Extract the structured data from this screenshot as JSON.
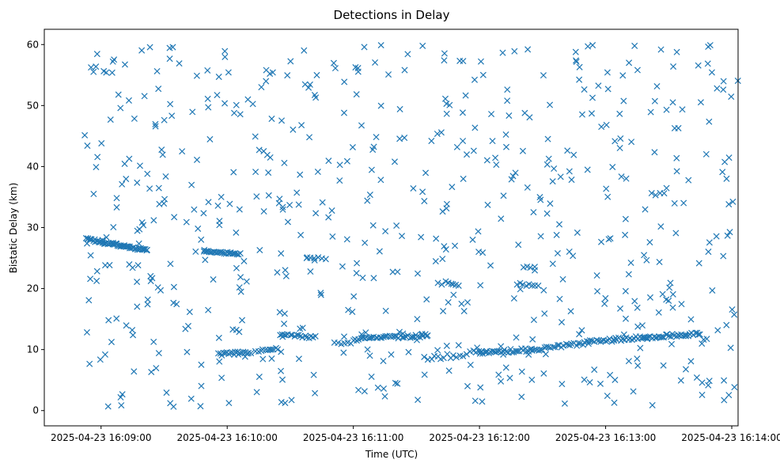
{
  "chart_data": {
    "type": "scatter",
    "title": "Detections in Delay",
    "xlabel": "Time (UTC)",
    "ylabel": "Bistatic Delay (km)",
    "marker": "x",
    "color": "#1f77b4",
    "x_unit": "seconds since 2025-04-23 16:09:00",
    "xlim": [
      -27,
      303
    ],
    "ylim": [
      -2.5,
      62.5
    ],
    "x_ticks": [
      {
        "value": 0,
        "label": "2025-04-23 16:09:00"
      },
      {
        "value": 60,
        "label": "2025-04-23 16:10:00"
      },
      {
        "value": 120,
        "label": "2025-04-23 16:11:00"
      },
      {
        "value": 180,
        "label": "2025-04-23 16:12:00"
      },
      {
        "value": 240,
        "label": "2025-04-23 16:13:00"
      },
      {
        "value": 300,
        "label": "2025-04-23 16:14:00"
      }
    ],
    "y_ticks": [
      {
        "value": 0,
        "label": "0"
      },
      {
        "value": 10,
        "label": "10"
      },
      {
        "value": 20,
        "label": "20"
      },
      {
        "value": 30,
        "label": "30"
      },
      {
        "value": 40,
        "label": "40"
      },
      {
        "value": 50,
        "label": "50"
      },
      {
        "value": 60,
        "label": "60"
      }
    ],
    "tracks": [
      {
        "x_start": -7,
        "x_end": 22,
        "y_start": 28.1,
        "y_end": 26.2,
        "count": 55,
        "jitter": 0.2
      },
      {
        "x_start": 49,
        "x_end": 66,
        "y_start": 26.1,
        "y_end": 25.7,
        "count": 26,
        "jitter": 0.15
      },
      {
        "x_start": 98,
        "x_end": 107,
        "y_start": 25.2,
        "y_end": 24.9,
        "count": 6,
        "jitter": 0.1
      },
      {
        "x_start": 56,
        "x_end": 71,
        "y_start": 9.2,
        "y_end": 9.6,
        "count": 20,
        "jitter": 0.25
      },
      {
        "x_start": 75,
        "x_end": 84,
        "y_start": 9.8,
        "y_end": 10.2,
        "count": 10,
        "jitter": 0.2
      },
      {
        "x_start": 85,
        "x_end": 102,
        "y_start": 12.4,
        "y_end": 12.0,
        "count": 18,
        "jitter": 0.2
      },
      {
        "x_start": 111,
        "x_end": 119,
        "y_start": 11.0,
        "y_end": 11.1,
        "count": 6,
        "jitter": 0.15
      },
      {
        "x_start": 120,
        "x_end": 155,
        "y_start": 11.7,
        "y_end": 12.3,
        "count": 40,
        "jitter": 0.25
      },
      {
        "x_start": 154,
        "x_end": 180,
        "y_start": 8.4,
        "y_end": 9.6,
        "count": 18,
        "jitter": 0.4
      },
      {
        "x_start": 180,
        "x_end": 205,
        "y_start": 9.5,
        "y_end": 10.0,
        "count": 30,
        "jitter": 0.3
      },
      {
        "x_start": 205,
        "x_end": 232,
        "y_start": 10.0,
        "y_end": 11.2,
        "count": 28,
        "jitter": 0.3
      },
      {
        "x_start": 232,
        "x_end": 258,
        "y_start": 11.2,
        "y_end": 12.1,
        "count": 30,
        "jitter": 0.3
      },
      {
        "x_start": 258,
        "x_end": 285,
        "y_start": 12.0,
        "y_end": 12.6,
        "count": 34,
        "jitter": 0.25
      },
      {
        "x_start": 164,
        "x_end": 170,
        "y_start": 21.0,
        "y_end": 20.6,
        "count": 6,
        "jitter": 0.2
      },
      {
        "x_start": 198,
        "x_end": 208,
        "y_start": 20.8,
        "y_end": 20.4,
        "count": 8,
        "jitter": 0.2
      },
      {
        "x_start": 201,
        "x_end": 206,
        "y_start": 23.5,
        "y_end": 23.5,
        "count": 4,
        "jitter": 0.1
      },
      {
        "x_start": 262,
        "x_end": 268,
        "y_start": 35.5,
        "y_end": 35.5,
        "count": 4,
        "jitter": 0.2
      }
    ],
    "background_points": {
      "count": 620,
      "x_range": [
        -8,
        303
      ],
      "y_range": [
        0.5,
        60
      ]
    }
  }
}
